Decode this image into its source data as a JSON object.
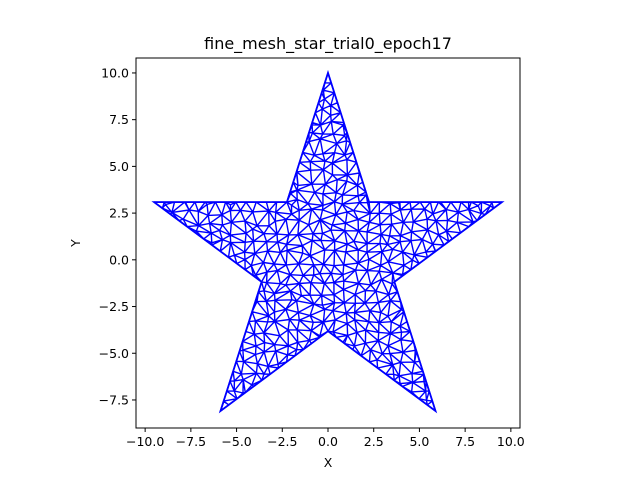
{
  "chart_data": {
    "type": "line",
    "title": "fine_mesh_star_trial0_epoch17",
    "xlabel": "X",
    "ylabel": "Y",
    "xlim": [
      -10.5,
      10.5
    ],
    "ylim": [
      -9.0,
      10.8
    ],
    "x_ticks": [
      -10.0,
      -7.5,
      -5.0,
      -2.5,
      0.0,
      2.5,
      5.0,
      7.5,
      10.0
    ],
    "x_tick_labels": [
      "−10.0",
      "−7.5",
      "−5.0",
      "−2.5",
      "0.0",
      "2.5",
      "5.0",
      "7.5",
      "10.0"
    ],
    "y_ticks": [
      -7.5,
      -5.0,
      -2.5,
      0.0,
      2.5,
      5.0,
      7.5,
      10.0
    ],
    "y_tick_labels": [
      "−7.5",
      "−5.0",
      "−2.5",
      "0.0",
      "2.5",
      "5.0",
      "7.5",
      "10.0"
    ],
    "grid": false,
    "series_color": "#0000ff",
    "star": {
      "outer_radius": 10.0,
      "inner_radius": 3.82,
      "vertices": [
        [
          0.0,
          10.0
        ],
        [
          2.25,
          3.09
        ],
        [
          9.51,
          3.09
        ],
        [
          3.63,
          -1.18
        ],
        [
          5.88,
          -8.09
        ],
        [
          0.0,
          -3.82
        ],
        [
          -5.88,
          -8.09
        ],
        [
          -3.63,
          -1.18
        ],
        [
          -9.51,
          3.09
        ],
        [
          -2.25,
          3.09
        ]
      ]
    }
  }
}
